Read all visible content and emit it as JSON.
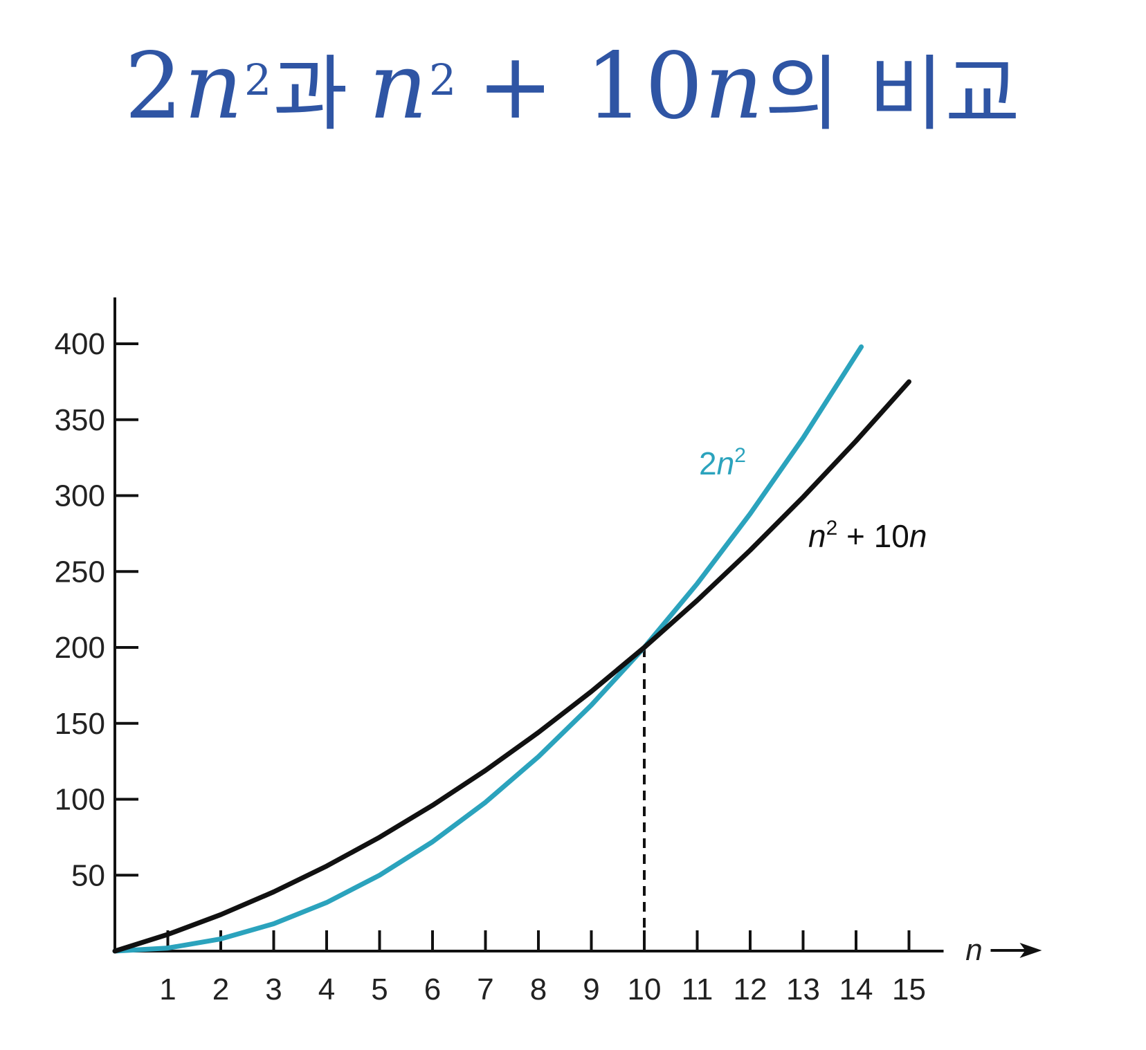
{
  "title": {
    "part1_coef": "2",
    "part1_var": "n",
    "part1_exp": "2",
    "connector": "과",
    "part2_var": "n",
    "part2_exp": "2",
    "part2_op": "+ 10",
    "part2_var2": "n",
    "suffix": "의 비교"
  },
  "chart_data": {
    "type": "line",
    "x": [
      0,
      1,
      2,
      3,
      4,
      5,
      6,
      7,
      8,
      9,
      10,
      11,
      12,
      13,
      14,
      15
    ],
    "x_tick_labels": [
      "1",
      "2",
      "3",
      "4",
      "5",
      "6",
      "7",
      "8",
      "9",
      "10",
      "11",
      "12",
      "13",
      "14",
      "15"
    ],
    "y_tick_labels": [
      "50",
      "100",
      "150",
      "200",
      "250",
      "300",
      "350",
      "400"
    ],
    "xlabel": "n",
    "ylabel": "",
    "xlim": [
      0,
      15
    ],
    "ylim": [
      0,
      420
    ],
    "grid": false,
    "series": [
      {
        "name": "2n²",
        "label_base": "2n",
        "label_exp": "2",
        "color": "#2ba3bd",
        "x": [
          0,
          1,
          2,
          3,
          4,
          5,
          6,
          7,
          8,
          9,
          10,
          11,
          12,
          13,
          14.1
        ],
        "values": [
          0,
          2,
          8,
          18,
          32,
          50,
          72,
          98,
          128,
          162,
          200,
          242,
          288,
          338,
          398
        ]
      },
      {
        "name": "n² + 10n",
        "label_base": "n",
        "label_exp": "2",
        "label_rest": " + 10n",
        "color": "#111111",
        "x": [
          0,
          1,
          2,
          3,
          4,
          5,
          6,
          7,
          8,
          9,
          10,
          11,
          12,
          13,
          14,
          15
        ],
        "values": [
          0,
          11,
          24,
          39,
          56,
          75,
          96,
          119,
          144,
          171,
          200,
          231,
          264,
          299,
          336,
          375
        ]
      }
    ],
    "annotations": [
      {
        "type": "dashed-vertical",
        "x": 10,
        "y": 200
      }
    ]
  }
}
